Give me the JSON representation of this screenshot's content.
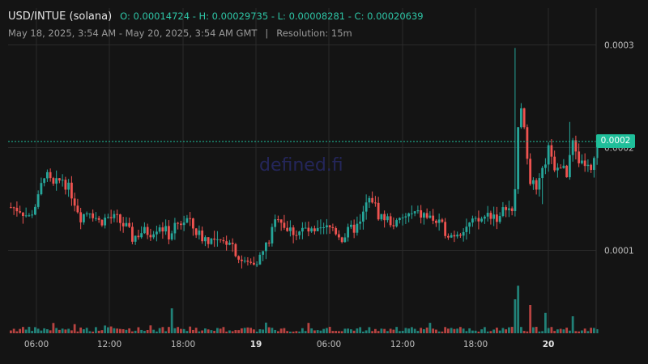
{
  "header": {
    "pair": "USD/INTUE (solana)",
    "ohlc": "O: 0.00014724 - H: 0.00029735 - L: 0.00008281 - C: 0.00020639",
    "range": "May 18, 2025, 3:54 AM - May 20, 2025, 3:54 AM GMT",
    "separator": "|",
    "resolution": "Resolution: 15m"
  },
  "watermark": "defined.fi",
  "last_price_label": "0.0002",
  "colors": {
    "up": "#26a69a",
    "down": "#ef5350",
    "background": "#141414",
    "grid": "#2a2a2a",
    "last_price": "#1fbf9a"
  },
  "chart_data": {
    "type": "candlestick",
    "y_ticks": [
      "0.0003",
      "0.0002",
      "0.0001"
    ],
    "y_tick_values": [
      0.0003,
      0.0002,
      0.0001
    ],
    "x_ticks": [
      "06:00",
      "12:00",
      "18:00",
      "19",
      "06:00",
      "12:00",
      "18:00",
      "20"
    ],
    "last_price": 0.000206,
    "grid": true,
    "close_path": [
      [
        0,
        0.000142
      ],
      [
        3,
        0.00014
      ],
      [
        6,
        0.000132
      ],
      [
        9,
        0.00015
      ],
      [
        11,
        0.000175
      ],
      [
        14,
        0.000162
      ],
      [
        17,
        0.00017
      ],
      [
        20,
        0.000155
      ],
      [
        23,
        0.000133
      ],
      [
        26,
        0.00014
      ],
      [
        29,
        0.000128
      ],
      [
        32,
        0.000132
      ],
      [
        35,
        0.00013
      ],
      [
        38,
        0.000122
      ],
      [
        40,
        0.000112
      ],
      [
        43,
        0.000118
      ],
      [
        46,
        0.000118
      ],
      [
        49,
        0.000125
      ],
      [
        52,
        0.000115
      ],
      [
        55,
        0.000125
      ],
      [
        58,
        0.00013
      ],
      [
        61,
        0.000118
      ],
      [
        63,
        0.000113
      ],
      [
        66,
        0.00011
      ],
      [
        69,
        0.000105
      ],
      [
        72,
        0.000112
      ],
      [
        75,
        9.3e-05
      ],
      [
        77,
        8.7e-05
      ],
      [
        79,
        8.8e-05
      ],
      [
        82,
        9.3e-05
      ],
      [
        85,
        0.00011
      ],
      [
        88,
        0.000135
      ],
      [
        91,
        0.00012
      ],
      [
        94,
        0.000118
      ],
      [
        97,
        0.00012
      ],
      [
        100,
        0.000115
      ],
      [
        103,
        0.00012
      ],
      [
        106,
        0.000122
      ],
      [
        109,
        0.000112
      ],
      [
        112,
        0.00012
      ],
      [
        115,
        0.000125
      ],
      [
        117,
        0.000145
      ],
      [
        119,
        0.00015
      ],
      [
        121,
        0.000135
      ],
      [
        124,
        0.00013
      ],
      [
        127,
        0.000125
      ],
      [
        130,
        0.000133
      ],
      [
        133,
        0.000135
      ],
      [
        136,
        0.000134
      ],
      [
        139,
        0.00013
      ],
      [
        142,
        0.000122
      ],
      [
        145,
        0.000115
      ],
      [
        148,
        0.00012
      ],
      [
        151,
        0.000125
      ],
      [
        154,
        0.000128
      ],
      [
        157,
        0.000135
      ],
      [
        159,
        0.000135
      ],
      [
        161,
        0.00013
      ],
      [
        163,
        0.000145
      ],
      [
        165,
        0.000135
      ],
      [
        166,
        0.00016
      ],
      [
        167,
        0.000225
      ],
      [
        168,
        0.000235
      ],
      [
        169,
        0.000215
      ],
      [
        170,
        0.000195
      ],
      [
        171,
        0.00017
      ],
      [
        173,
        0.000155
      ],
      [
        175,
        0.000175
      ],
      [
        177,
        0.0002
      ],
      [
        179,
        0.000175
      ],
      [
        181,
        0.000185
      ],
      [
        183,
        0.00017
      ],
      [
        185,
        0.000205
      ],
      [
        187,
        0.00018
      ],
      [
        189,
        0.000185
      ],
      [
        191,
        0.000175
      ],
      [
        192,
        0.000185
      ],
      [
        193,
        0.000206
      ]
    ],
    "spikes": [
      [
        166,
        0.000297
      ],
      [
        168,
        0.00024
      ],
      [
        184,
        0.000225
      ],
      [
        175,
        0.000145
      ]
    ],
    "volume_spikes": [
      [
        167,
        0.42
      ],
      [
        166,
        0.3
      ],
      [
        171,
        0.25
      ],
      [
        53,
        0.22
      ],
      [
        185,
        0.15
      ],
      [
        176,
        0.18
      ]
    ]
  }
}
